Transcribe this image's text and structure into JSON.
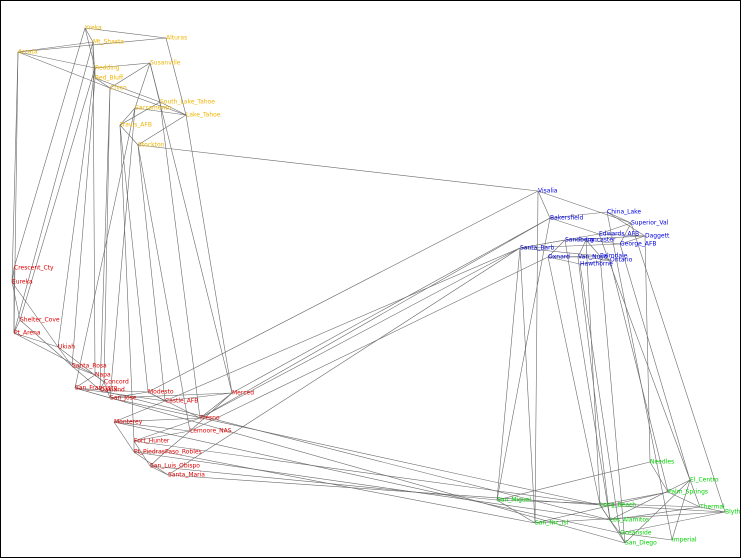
{
  "groups": {
    "north": {
      "color": "#f0b400"
    },
    "coast": {
      "color": "#e00000"
    },
    "south": {
      "color": "#0000e0"
    },
    "border": {
      "color": "#00d000"
    }
  },
  "nodes": [
    {
      "label": "Alturas",
      "group": "north"
    },
    {
      "label": "Yreka",
      "group": "north"
    },
    {
      "label": "Mt_Shasta",
      "group": "north"
    },
    {
      "label": "Arcata",
      "group": "north"
    },
    {
      "label": "Redding",
      "group": "north"
    },
    {
      "label": "Red_Bluff",
      "group": "north"
    },
    {
      "label": "Chico",
      "group": "north"
    },
    {
      "label": "Susanville",
      "group": "north"
    },
    {
      "label": "South_Lake_Tahoe",
      "group": "north"
    },
    {
      "label": "Lake_Tahoe",
      "group": "north"
    },
    {
      "label": "Sacramento",
      "group": "north"
    },
    {
      "label": "Travis_AFB",
      "group": "north"
    },
    {
      "label": "Stockton",
      "group": "north"
    },
    {
      "label": "Crescent_Cty",
      "group": "coast"
    },
    {
      "label": "Eureka",
      "group": "coast"
    },
    {
      "label": "Shelter_Cove",
      "group": "coast"
    },
    {
      "label": "Pt_Arena",
      "group": "coast"
    },
    {
      "label": "Ukiah",
      "group": "coast"
    },
    {
      "label": "Santa_Rosa",
      "group": "coast"
    },
    {
      "label": "Napa",
      "group": "coast"
    },
    {
      "label": "Concord",
      "group": "coast"
    },
    {
      "label": "Oakland",
      "group": "coast"
    },
    {
      "label": "San_Francisco",
      "group": "coast"
    },
    {
      "label": "San_Jose",
      "group": "coast"
    },
    {
      "label": "Modesto",
      "group": "coast"
    },
    {
      "label": "Castle_AFB",
      "group": "coast"
    },
    {
      "label": "Merced",
      "group": "coast"
    },
    {
      "label": "Fresno",
      "group": "coast"
    },
    {
      "label": "Monterey",
      "group": "coast"
    },
    {
      "label": "Lemoore_NAS",
      "group": "coast"
    },
    {
      "label": "Fort_Hunter",
      "group": "coast"
    },
    {
      "label": "Pt_Piedras",
      "group": "coast"
    },
    {
      "label": "Paso_Robles",
      "group": "coast"
    },
    {
      "label": "San_Luis_Obispo",
      "group": "coast"
    },
    {
      "label": "Santa_Maria",
      "group": "coast"
    },
    {
      "label": "Visalia",
      "group": "south"
    },
    {
      "label": "Bakersfield",
      "group": "south"
    },
    {
      "label": "China_Lake",
      "group": "south"
    },
    {
      "label": "Superior_Val",
      "group": "south"
    },
    {
      "label": "Edwards_AFB",
      "group": "south"
    },
    {
      "label": "Daggett",
      "group": "south"
    },
    {
      "label": "George_AFB",
      "group": "south"
    },
    {
      "label": "Santa_Barb",
      "group": "south"
    },
    {
      "label": "Sandberg",
      "group": "south"
    },
    {
      "label": "Lancaster",
      "group": "south"
    },
    {
      "label": "Palmdale",
      "group": "south"
    },
    {
      "label": "Oxnard",
      "group": "south"
    },
    {
      "label": "Van_Nuys",
      "group": "south"
    },
    {
      "label": "Ontario",
      "group": "south"
    },
    {
      "label": "Hawthorne",
      "group": "south"
    },
    {
      "label": "Needles",
      "group": "border"
    },
    {
      "label": "San_Miguel",
      "group": "border"
    },
    {
      "label": "San_Nic_Isl",
      "group": "border"
    },
    {
      "label": "Palm_Springs",
      "group": "border"
    },
    {
      "label": "Thermal",
      "group": "border"
    },
    {
      "label": "Blythe",
      "group": "border"
    },
    {
      "label": "Long_Beach",
      "group": "border"
    },
    {
      "label": "Los_Alamitos",
      "group": "border"
    },
    {
      "label": "Oceanside",
      "group": "border"
    },
    {
      "label": "San_Diego",
      "group": "border"
    },
    {
      "label": "El_Centro",
      "group": "border"
    },
    {
      "label": "Imperial",
      "group": "border"
    }
  ]
}
